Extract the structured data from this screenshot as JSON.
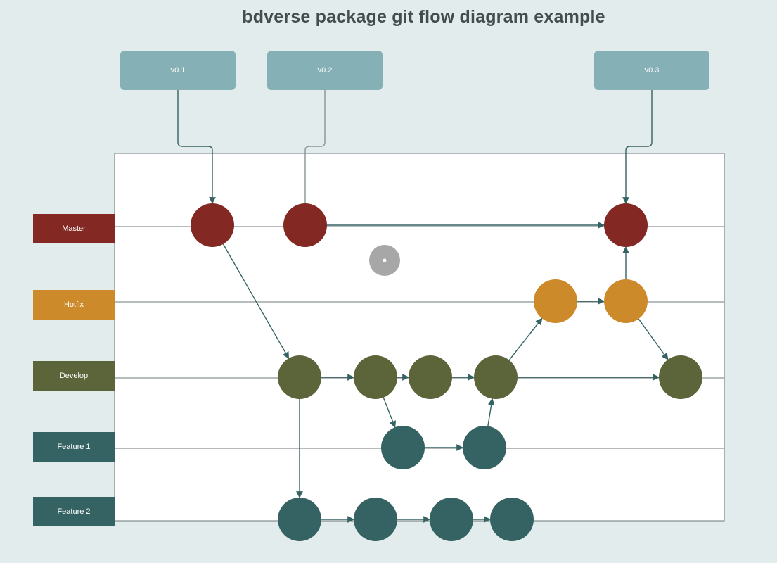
{
  "title": "bdverse package git flow diagram example",
  "colors": {
    "master": "#832822",
    "hotfix": "#cd8a2a",
    "develop": "#5c643a",
    "feature": "#356262",
    "tag": "#85b0b6",
    "edge": "#356262"
  },
  "tags": [
    {
      "id": "v01",
      "label": "v0.1"
    },
    {
      "id": "v02",
      "label": "v0.2"
    },
    {
      "id": "v03",
      "label": "v0.3"
    }
  ],
  "lanes": [
    {
      "id": "master",
      "label": "Master"
    },
    {
      "id": "hotfix",
      "label": "Hotfix"
    },
    {
      "id": "develop",
      "label": "Develop"
    },
    {
      "id": "feature1",
      "label": "Feature 1"
    },
    {
      "id": "feature2",
      "label": "Feature 2"
    }
  ],
  "commits": [
    {
      "id": "m1",
      "lane": "master"
    },
    {
      "id": "m2",
      "lane": "master"
    },
    {
      "id": "m3",
      "lane": "master"
    },
    {
      "id": "h1",
      "lane": "hotfix"
    },
    {
      "id": "h2",
      "lane": "hotfix"
    },
    {
      "id": "d1",
      "lane": "develop"
    },
    {
      "id": "d2",
      "lane": "develop"
    },
    {
      "id": "d3",
      "lane": "develop"
    },
    {
      "id": "d4",
      "lane": "develop"
    },
    {
      "id": "d5",
      "lane": "develop"
    },
    {
      "id": "f1a",
      "lane": "feature1"
    },
    {
      "id": "f1b",
      "lane": "feature1"
    },
    {
      "id": "f2a",
      "lane": "feature2"
    },
    {
      "id": "f2b",
      "lane": "feature2"
    },
    {
      "id": "f2c",
      "lane": "feature2"
    },
    {
      "id": "f2d",
      "lane": "feature2"
    }
  ],
  "edges": [
    {
      "from": "v01",
      "to": "m1",
      "kind": "tag"
    },
    {
      "from": "v02",
      "to": "m2",
      "kind": "tag"
    },
    {
      "from": "v03",
      "to": "m3",
      "kind": "tag"
    },
    {
      "from": "m2",
      "to": "m3"
    },
    {
      "from": "m1",
      "to": "d1"
    },
    {
      "from": "d1",
      "to": "d2"
    },
    {
      "from": "d2",
      "to": "d3"
    },
    {
      "from": "d3",
      "to": "d4"
    },
    {
      "from": "d4",
      "to": "d5"
    },
    {
      "from": "d2",
      "to": "f1a"
    },
    {
      "from": "f1a",
      "to": "f1b"
    },
    {
      "from": "f1b",
      "to": "d4"
    },
    {
      "from": "d4",
      "to": "h1"
    },
    {
      "from": "h1",
      "to": "h2"
    },
    {
      "from": "h2",
      "to": "m3"
    },
    {
      "from": "h2",
      "to": "d5"
    },
    {
      "from": "d1",
      "to": "f2a"
    },
    {
      "from": "f2a",
      "to": "f2b"
    },
    {
      "from": "f2b",
      "to": "f2c"
    },
    {
      "from": "f2c",
      "to": "f2d"
    }
  ]
}
